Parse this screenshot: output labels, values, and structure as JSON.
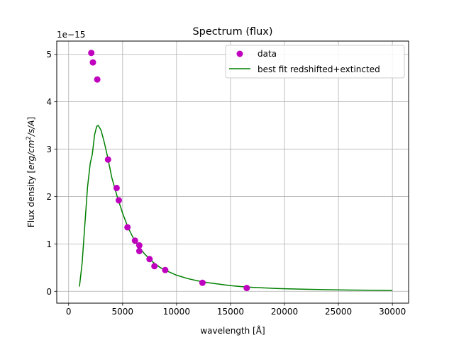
{
  "chart_data": {
    "type": "scatter",
    "title": "Spectrum (flux)",
    "xlabel": "wavelength [Å]",
    "ylabel_prefix": "Flux density [",
    "ylabel_unit": "erg/cm",
    "ylabel_exp": "2",
    "ylabel_suffix": "/s/A",
    "ylabel_close": "]",
    "offset_label": "1e−15",
    "xlim": [
      -1100,
      31500
    ],
    "ylim": [
      -0.25,
      5.28
    ],
    "xticks": [
      0,
      5000,
      10000,
      15000,
      20000,
      25000,
      30000
    ],
    "xtick_labels": [
      "0",
      "5000",
      "10000",
      "15000",
      "20000",
      "25000",
      "30000"
    ],
    "yticks": [
      0,
      1,
      2,
      3,
      4,
      5
    ],
    "ytick_labels": [
      "0",
      "1",
      "2",
      "3",
      "4",
      "5"
    ],
    "grid": true,
    "legend_position": "top-right",
    "series": [
      {
        "name": "data",
        "kind": "scatter",
        "color": "#bf00bf",
        "points": [
          [
            2100,
            5.03
          ],
          [
            2250,
            4.83
          ],
          [
            2650,
            4.47
          ],
          [
            3650,
            2.78
          ],
          [
            4450,
            2.18
          ],
          [
            4650,
            1.92
          ],
          [
            5450,
            1.35
          ],
          [
            6150,
            1.07
          ],
          [
            6550,
            0.97
          ],
          [
            6550,
            0.85
          ],
          [
            7500,
            0.68
          ],
          [
            7950,
            0.53
          ],
          [
            8950,
            0.45
          ],
          [
            12400,
            0.18
          ],
          [
            16500,
            0.07
          ]
        ]
      },
      {
        "name": "best fit redshifted+extincted",
        "kind": "line",
        "color": "#008000",
        "points": [
          [
            1000,
            0.1
          ],
          [
            1250,
            0.6
          ],
          [
            1500,
            1.4
          ],
          [
            1750,
            2.2
          ],
          [
            2000,
            2.7
          ],
          [
            2200,
            2.9
          ],
          [
            2400,
            3.3
          ],
          [
            2600,
            3.48
          ],
          [
            2750,
            3.5
          ],
          [
            3000,
            3.4
          ],
          [
            3300,
            3.15
          ],
          [
            3600,
            2.85
          ],
          [
            4000,
            2.4
          ],
          [
            4500,
            2.0
          ],
          [
            5000,
            1.65
          ],
          [
            5500,
            1.35
          ],
          [
            6000,
            1.12
          ],
          [
            6500,
            0.94
          ],
          [
            7000,
            0.8
          ],
          [
            7500,
            0.68
          ],
          [
            8000,
            0.58
          ],
          [
            8500,
            0.5
          ],
          [
            9000,
            0.44
          ],
          [
            10000,
            0.34
          ],
          [
            11000,
            0.27
          ],
          [
            12000,
            0.22
          ],
          [
            13000,
            0.18
          ],
          [
            14000,
            0.15
          ],
          [
            15000,
            0.12
          ],
          [
            16000,
            0.1
          ],
          [
            17000,
            0.085
          ],
          [
            18000,
            0.073
          ],
          [
            19000,
            0.063
          ],
          [
            20000,
            0.055
          ],
          [
            22000,
            0.043
          ],
          [
            24000,
            0.034
          ],
          [
            26000,
            0.027
          ],
          [
            28000,
            0.022
          ],
          [
            30000,
            0.018
          ]
        ]
      }
    ]
  }
}
